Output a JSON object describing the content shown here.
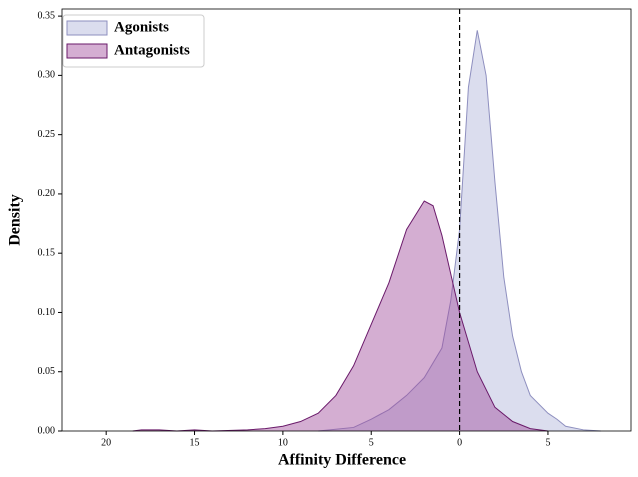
{
  "chart_data": {
    "type": "kde",
    "xlabel": "Affinity Difference",
    "ylabel": "Density",
    "xlim": [
      -22.5,
      9.7
    ],
    "ylim": [
      0,
      0.356
    ],
    "xticks": [
      {
        "value": -20,
        "label": "20"
      },
      {
        "value": -15,
        "label": "15"
      },
      {
        "value": -10,
        "label": "10"
      },
      {
        "value": -5,
        "label": "5"
      },
      0,
      5
    ],
    "yticks": [
      {
        "value": 0,
        "label": "0.00"
      },
      {
        "value": 0.05,
        "label": "0.05"
      },
      {
        "value": 0.1,
        "label": "0.10"
      },
      {
        "value": 0.15,
        "label": "0.15"
      },
      {
        "value": 0.2,
        "label": "0.20"
      },
      {
        "value": 0.25,
        "label": "0.25"
      },
      {
        "value": 0.3,
        "label": "0.30"
      },
      {
        "value": 0.35,
        "label": "0.35"
      }
    ],
    "vline": 0,
    "legend": "upper left",
    "series": [
      {
        "name": "Agonists",
        "color": "#8e8fbf",
        "fill": "#c3c7e2",
        "x": [
          -8,
          -6,
          -5,
          -4,
          -3,
          -2,
          -1,
          -0.5,
          0,
          0.5,
          1,
          1.5,
          2,
          2.5,
          3,
          3.5,
          4,
          5,
          5.5,
          6,
          7,
          8
        ],
        "values": [
          0,
          0.003,
          0.01,
          0.018,
          0.03,
          0.045,
          0.07,
          0.11,
          0.17,
          0.29,
          0.338,
          0.3,
          0.21,
          0.13,
          0.08,
          0.05,
          0.03,
          0.015,
          0.01,
          0.004,
          0.001,
          0
        ]
      },
      {
        "name": "Antagonists",
        "color": "#6a1a6a",
        "fill": "#a04c9c",
        "x": [
          -18.5,
          -18,
          -17,
          -16,
          -15,
          -14,
          -12,
          -11,
          -10,
          -9,
          -8,
          -7,
          -6,
          -5,
          -4,
          -3,
          -2,
          -1.5,
          -1,
          0,
          1,
          2,
          3,
          4,
          5
        ],
        "values": [
          0,
          0.001,
          0.001,
          0,
          0.001,
          0,
          0.001,
          0.002,
          0.004,
          0.008,
          0.015,
          0.03,
          0.055,
          0.09,
          0.125,
          0.17,
          0.194,
          0.19,
          0.165,
          0.1,
          0.05,
          0.02,
          0.008,
          0.002,
          0
        ]
      }
    ]
  }
}
